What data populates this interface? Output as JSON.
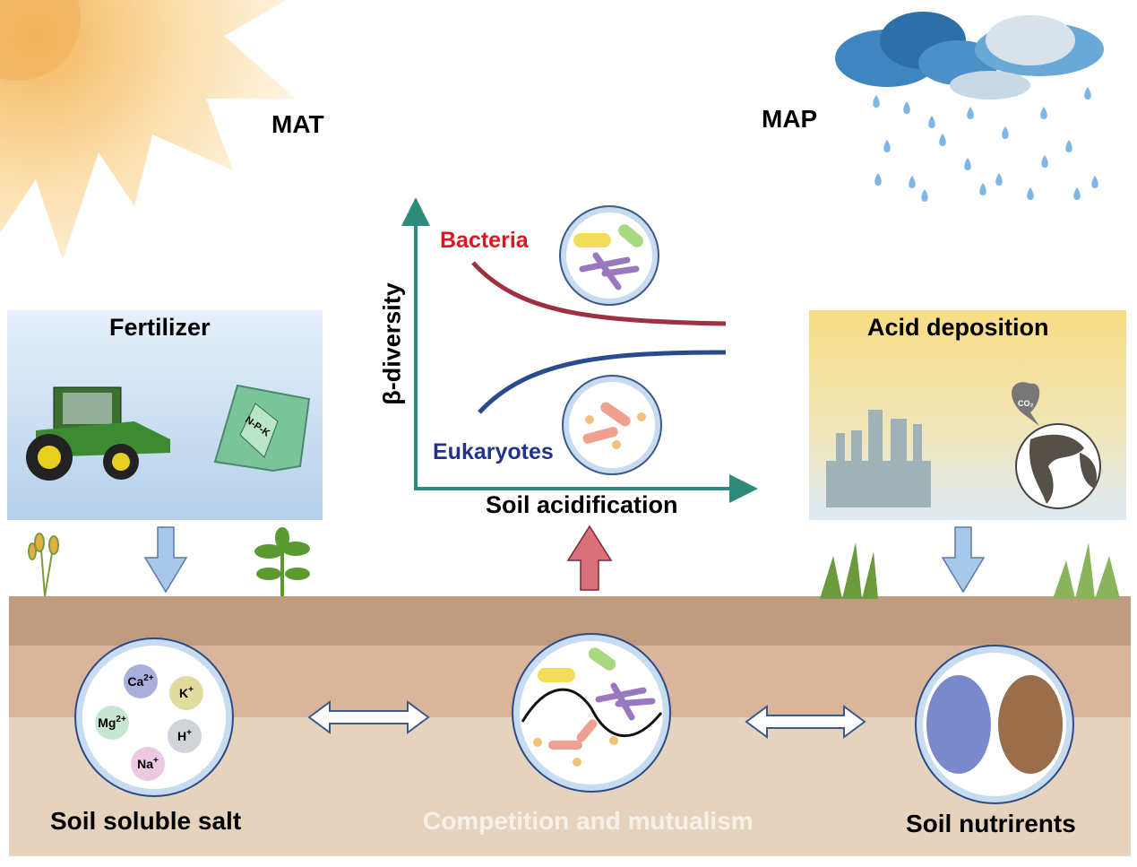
{
  "labels": {
    "mat": "MAT",
    "map": "MAP",
    "fertilizer": "Fertilizer",
    "npk": "N-P-K",
    "acid_deposition": "Acid deposition",
    "co2": "CO₂",
    "y_axis": "β-diversity",
    "x_axis": "Soil acidification",
    "bacteria": "Bacteria",
    "eukaryotes": "Eukaryotes",
    "soil_soluble_salt": "Soil soluble salt",
    "competition": "Competition and mutualism",
    "soil_nutrients": "Soil nutrirents"
  },
  "ions": [
    {
      "base": "Ca",
      "charge": "2+",
      "color": "#aab0dc"
    },
    {
      "base": "K",
      "charge": "+",
      "color": "#e2dca0"
    },
    {
      "base": "Mg",
      "charge": "2+",
      "color": "#c6e6d2"
    },
    {
      "base": "H",
      "charge": "+",
      "color": "#cfd5d8"
    },
    {
      "base": "Na",
      "charge": "+",
      "color": "#ecc8e2"
    }
  ],
  "colors": {
    "axis": "#2e8a7a",
    "bacteria": "#e0141e",
    "bacteria_curve": "#9e3040",
    "eukaryotes": "#23338a",
    "eukaryotes_curve": "#2a4a8e",
    "soil_top": "#bf9b80",
    "soil_mid": "#d8b59b",
    "soil_bottom": "#e6d3bd",
    "down_arrow": "#a8c8ea",
    "up_arrow": "#d9707a"
  }
}
